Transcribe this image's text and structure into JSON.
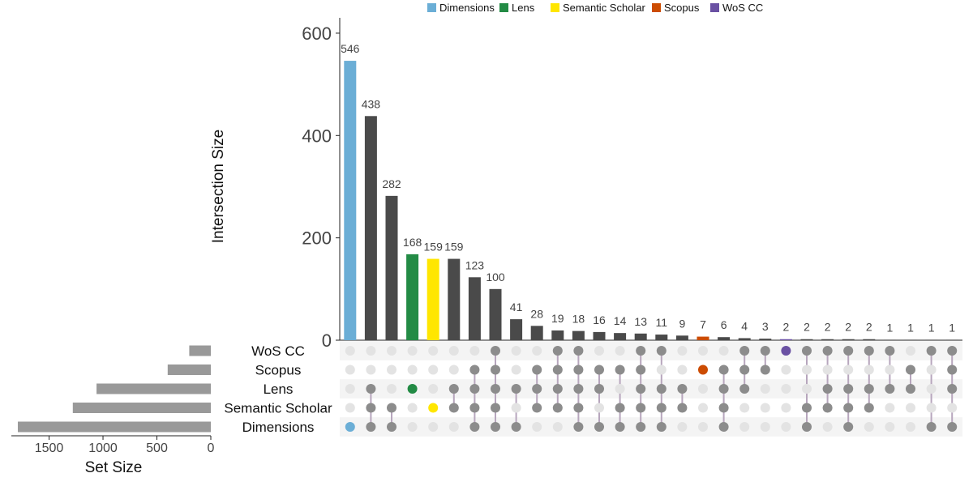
{
  "chart_data": {
    "type": "bar",
    "subtype": "upset",
    "ylabel": "Intersection Size",
    "xlabel_sets": "Set Size",
    "ylim": [
      0,
      630
    ],
    "yticks": [
      "0",
      "200",
      "400",
      "600"
    ],
    "set_size_ticks": [
      "1500",
      "1000",
      "500",
      "0"
    ],
    "set_size_xlim": [
      0,
      1850
    ],
    "legend_position": "top",
    "legend": [
      {
        "label": "Dimensions",
        "color": "#6baed6"
      },
      {
        "label": "Lens",
        "color": "#238b45"
      },
      {
        "label": "Semantic Scholar",
        "color": "#ffe600"
      },
      {
        "label": "Scopus",
        "color": "#cc4c02"
      },
      {
        "label": "WoS CC",
        "color": "#6a51a3"
      }
    ],
    "sets": [
      {
        "name": "WoS CC",
        "size": 200
      },
      {
        "name": "Scopus",
        "size": 400
      },
      {
        "name": "Lens",
        "size": 1060
      },
      {
        "name": "Semantic Scholar",
        "size": 1280
      },
      {
        "name": "Dimensions",
        "size": 1790
      }
    ],
    "intersections": [
      {
        "value": 546,
        "label": "546",
        "sets": [
          "Dimensions"
        ],
        "color": "#6baed6"
      },
      {
        "value": 438,
        "label": "438",
        "sets": [
          "Lens",
          "Semantic Scholar",
          "Dimensions"
        ],
        "color": "#4a4a4a"
      },
      {
        "value": 282,
        "label": "282",
        "sets": [
          "Semantic Scholar",
          "Dimensions"
        ],
        "color": "#4a4a4a"
      },
      {
        "value": 168,
        "label": "168",
        "sets": [
          "Lens"
        ],
        "color": "#238b45"
      },
      {
        "value": 159,
        "label": "159",
        "sets": [
          "Semantic Scholar"
        ],
        "color": "#ffe600"
      },
      {
        "value": 159,
        "label": "159",
        "sets": [
          "Lens",
          "Semantic Scholar"
        ],
        "color": "#4a4a4a"
      },
      {
        "value": 123,
        "label": "123",
        "sets": [
          "Scopus",
          "Lens",
          "Semantic Scholar",
          "Dimensions"
        ],
        "color": "#4a4a4a"
      },
      {
        "value": 100,
        "label": "100",
        "sets": [
          "WoS CC",
          "Scopus",
          "Lens",
          "Semantic Scholar",
          "Dimensions"
        ],
        "color": "#4a4a4a"
      },
      {
        "value": 41,
        "label": "41",
        "sets": [
          "Lens",
          "Dimensions"
        ],
        "color": "#4a4a4a"
      },
      {
        "value": 28,
        "label": "28",
        "sets": [
          "Scopus",
          "Lens",
          "Semantic Scholar"
        ],
        "color": "#4a4a4a"
      },
      {
        "value": 19,
        "label": "19",
        "sets": [
          "WoS CC",
          "Scopus",
          "Lens",
          "Semantic Scholar"
        ],
        "color": "#4a4a4a"
      },
      {
        "value": 18,
        "label": "18",
        "sets": [
          "WoS CC",
          "Scopus",
          "Lens",
          "Semantic Scholar",
          "Dimensions"
        ],
        "color": "#4a4a4a"
      },
      {
        "value": 16,
        "label": "16",
        "sets": [
          "Scopus",
          "Lens",
          "Dimensions"
        ],
        "color": "#4a4a4a"
      },
      {
        "value": 14,
        "label": "14",
        "sets": [
          "Scopus",
          "Semantic Scholar",
          "Dimensions"
        ],
        "color": "#4a4a4a"
      },
      {
        "value": 13,
        "label": "13",
        "sets": [
          "WoS CC",
          "Scopus",
          "Lens",
          "Semantic Scholar",
          "Dimensions"
        ],
        "color": "#4a4a4a"
      },
      {
        "value": 11,
        "label": "11",
        "sets": [
          "WoS CC",
          "Lens",
          "Semantic Scholar",
          "Dimensions"
        ],
        "color": "#4a4a4a"
      },
      {
        "value": 9,
        "label": "9",
        "sets": [
          "Lens",
          "Semantic Scholar"
        ],
        "color": "#4a4a4a"
      },
      {
        "value": 7,
        "label": "7",
        "sets": [
          "Scopus"
        ],
        "color": "#cc4c02"
      },
      {
        "value": 6,
        "label": "6",
        "sets": [
          "Scopus",
          "Lens",
          "Semantic Scholar",
          "Dimensions"
        ],
        "color": "#4a4a4a"
      },
      {
        "value": 4,
        "label": "4",
        "sets": [
          "WoS CC",
          "Scopus",
          "Lens"
        ],
        "color": "#4a4a4a"
      },
      {
        "value": 3,
        "label": "3",
        "sets": [
          "WoS CC",
          "Scopus"
        ],
        "color": "#4a4a4a"
      },
      {
        "value": 2,
        "label": "2",
        "sets": [
          "WoS CC"
        ],
        "color": "#6a51a3"
      },
      {
        "value": 2,
        "label": "2",
        "sets": [
          "WoS CC",
          "Semantic Scholar",
          "Dimensions"
        ],
        "color": "#4a4a4a"
      },
      {
        "value": 2,
        "label": "2",
        "sets": [
          "WoS CC",
          "Lens",
          "Semantic Scholar"
        ],
        "color": "#4a4a4a"
      },
      {
        "value": 2,
        "label": "2",
        "sets": [
          "WoS CC",
          "Lens",
          "Semantic Scholar",
          "Dimensions"
        ],
        "color": "#4a4a4a"
      },
      {
        "value": 2,
        "label": "2",
        "sets": [
          "WoS CC",
          "Lens",
          "Semantic Scholar"
        ],
        "color": "#4a4a4a"
      },
      {
        "value": 1,
        "label": "1",
        "sets": [
          "WoS CC",
          "Lens"
        ],
        "color": "#4a4a4a"
      },
      {
        "value": 1,
        "label": "1",
        "sets": [
          "Scopus",
          "Lens"
        ],
        "color": "#4a4a4a"
      },
      {
        "value": 1,
        "label": "1",
        "sets": [
          "WoS CC",
          "Dimensions"
        ],
        "color": "#4a4a4a"
      },
      {
        "value": 1,
        "label": "1",
        "sets": [
          "WoS CC",
          "Scopus",
          "Lens",
          "Dimensions"
        ],
        "color": "#4a4a4a"
      }
    ]
  },
  "colors": {
    "bar_default": "#4a4a4a",
    "set_bar": "#999999",
    "dot_active": "#8c8c8c",
    "dot_inactive": "#e3e3e3",
    "stripe": "#f4f4f4",
    "connector": "#b7a6bd"
  }
}
